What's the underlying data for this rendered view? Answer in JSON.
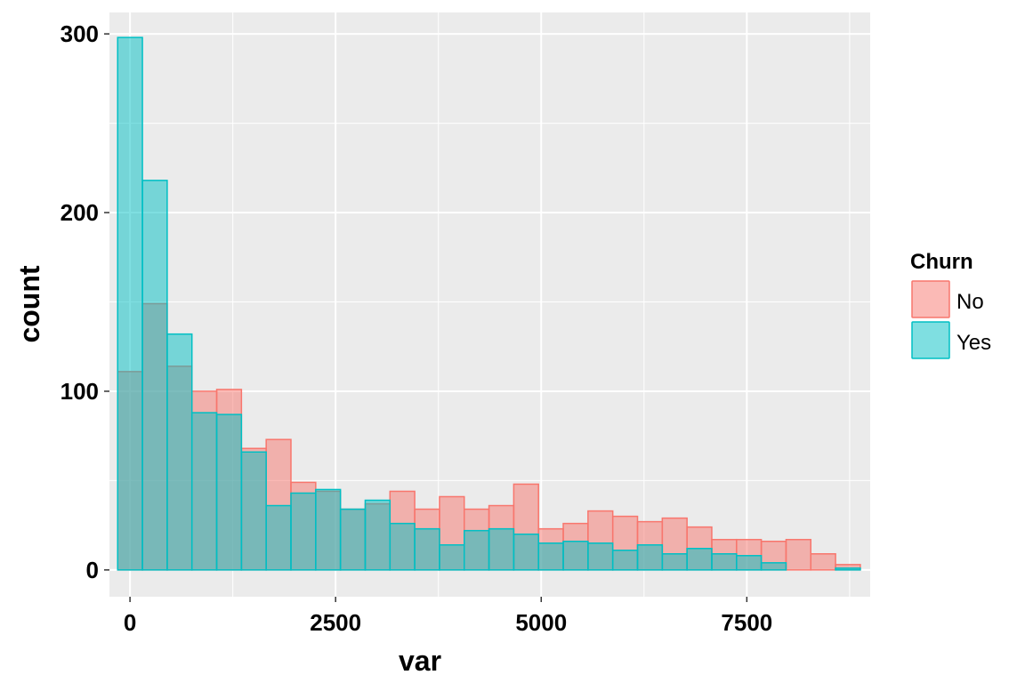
{
  "chart_data": {
    "type": "bar",
    "subtype": "histogram-overlay",
    "xlabel": "var",
    "ylabel": "count",
    "xlim": [
      -250,
      9000
    ],
    "ylim": [
      -15,
      312
    ],
    "x_ticks": [
      0,
      2500,
      5000,
      7500
    ],
    "x_tick_labels": [
      "0",
      "2500",
      "5000",
      "7500"
    ],
    "y_ticks": [
      0,
      100,
      200,
      300
    ],
    "y_tick_labels": [
      "0",
      "100",
      "200",
      "300"
    ],
    "bin_start": -150,
    "bin_width": 301,
    "grid": true,
    "legend": {
      "title": "Churn",
      "position": "right"
    },
    "series": [
      {
        "name": "No",
        "fill": "#F8766D",
        "stroke": "#F8766D",
        "values": [
          111,
          149,
          114,
          100,
          101,
          68,
          73,
          49,
          44,
          34,
          37,
          44,
          34,
          41,
          34,
          36,
          48,
          23,
          26,
          33,
          30,
          27,
          29,
          24,
          17,
          17,
          16,
          17,
          9,
          3
        ]
      },
      {
        "name": "Yes",
        "fill": "#00BFC4",
        "stroke": "#00BFC4",
        "values": [
          298,
          218,
          132,
          88,
          87,
          66,
          36,
          43,
          45,
          34,
          39,
          26,
          23,
          14,
          22,
          23,
          20,
          15,
          16,
          15,
          11,
          14,
          9,
          12,
          9,
          8,
          4,
          0,
          0,
          1
        ]
      }
    ]
  }
}
